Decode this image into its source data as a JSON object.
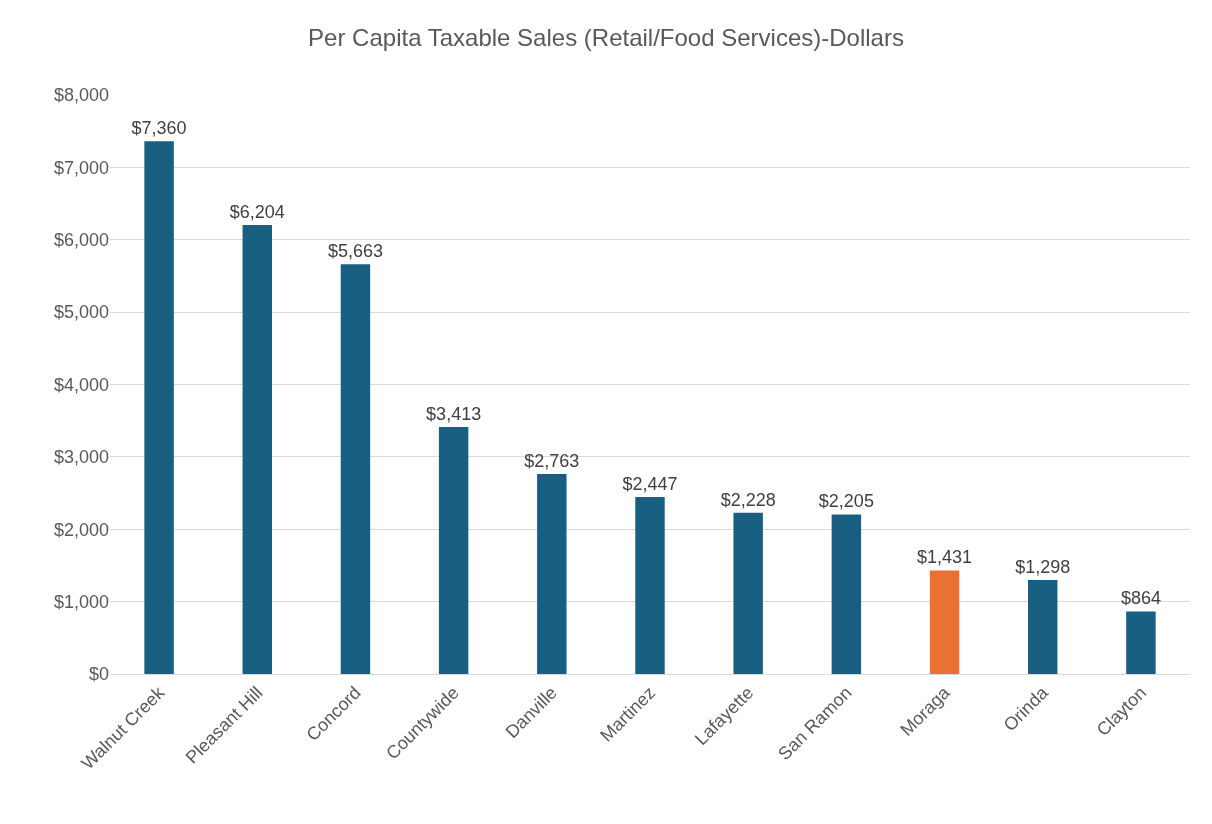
{
  "chart_data": {
    "type": "bar",
    "title": "Per Capita Taxable Sales (Retail/Food Services)-Dollars",
    "categories": [
      "Walnut Creek",
      "Pleasant Hill",
      "Concord",
      "Countywide",
      "Danville",
      "Martinez",
      "Lafayette",
      "San Ramon",
      "Moraga",
      "Orinda",
      "Clayton"
    ],
    "values": [
      7360,
      6204,
      5663,
      3413,
      2763,
      2447,
      2228,
      2205,
      1431,
      1298,
      864
    ],
    "colors": [
      "#185f82",
      "#185f82",
      "#185f82",
      "#185f82",
      "#185f82",
      "#185f82",
      "#185f82",
      "#185f82",
      "#e97132",
      "#185f82",
      "#185f82"
    ],
    "value_labels": [
      "$7,360",
      "$6,204",
      "$5,663",
      "$3,413",
      "$2,763",
      "$2,447",
      "$2,228",
      "$2,205",
      "$1,431",
      "$1,298",
      "$864"
    ],
    "ylim": [
      0,
      8000
    ],
    "yticks": [
      {
        "value": 0,
        "label": "$0"
      },
      {
        "value": 1000,
        "label": "$1,000"
      },
      {
        "value": 2000,
        "label": "$2,000"
      },
      {
        "value": 3000,
        "label": "$3,000"
      },
      {
        "value": 4000,
        "label": "$4,000"
      },
      {
        "value": 5000,
        "label": "$5,000"
      },
      {
        "value": 6000,
        "label": "$6,000"
      },
      {
        "value": 7000,
        "label": "$7,000"
      },
      {
        "value": 8000,
        "label": "$8,000"
      }
    ],
    "grid": "y"
  }
}
